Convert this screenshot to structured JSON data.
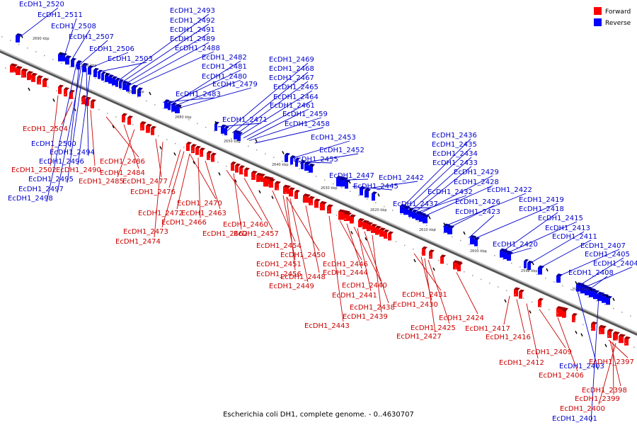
{
  "caption": "Escherichia coli DH1, complete genome. - 0..4630707",
  "legend": [
    {
      "label": "Forward",
      "color": "#ff0000"
    },
    {
      "label": "Reverse",
      "color": "#0000ff"
    }
  ],
  "colors": {
    "forward": "#ff0000",
    "reverse": "#0000ff",
    "forward_text": "#cc0000",
    "reverse_text": "#0000cc",
    "axis": "#999999"
  },
  "ticks": [
    "2690 kbp",
    "2680 kbp",
    "2670 kbp",
    "2660 kbp",
    "2650 kbp",
    "2640 kbp",
    "2630 kbp",
    "2620 kbp",
    "2610 kbp",
    "2600 kbp",
    "2590 kbp",
    "2580 kbp"
  ],
  "reverse_genes": [
    "EcDH1_2520",
    "EcDH1_2511",
    "EcDH1_2508",
    "EcDH1_2507",
    "EcDH1_2506",
    "EcDH1_2503",
    "EcDH1_2493",
    "EcDH1_2492",
    "EcDH1_2491",
    "EcDH1_2489",
    "EcDH1_2488",
    "EcDH1_2482",
    "EcDH1_2481",
    "EcDH1_2480",
    "EcDH1_2479",
    "EcDH1_2483",
    "EcDH1_2469",
    "EcDH1_2468",
    "EcDH1_2467",
    "EcDH1_2465",
    "EcDH1_2464",
    "EcDH1_2461",
    "EcDH1_2471",
    "EcDH1_2459",
    "EcDH1_2458",
    "EcDH1_2453",
    "EcDH1_2452",
    "EcDH1_2455",
    "EcDH1_2447",
    "EcDH1_2442",
    "EcDH1_2445",
    "EcDH1_2436",
    "EcDH1_2435",
    "EcDH1_2434",
    "EcDH1_2433",
    "EcDH1_2429",
    "EcDH1_2428",
    "EcDH1_2432",
    "EcDH1_2422",
    "EcDH1_2437",
    "EcDH1_2426",
    "EcDH1_2419",
    "EcDH1_2418",
    "EcDH1_2423",
    "EcDH1_2415",
    "EcDH1_2413",
    "EcDH1_2411",
    "EcDH1_2420",
    "EcDH1_2407",
    "EcDH1_2405",
    "EcDH1_2404",
    "EcDH1_2408",
    "EcDH1_2500",
    "EcDH1_2494",
    "EcDH1_2496",
    "EcDH1_2495",
    "EcDH1_2497",
    "EcDH1_2498",
    "EcDH1_2403",
    "EcDH1_2401"
  ],
  "forward_genes": [
    "EcDH1_2504",
    "EcDH1_2502",
    "EcDH1_2490",
    "EcDH1_2486",
    "EcDH1_2484",
    "EcDH1_2485",
    "EcDH1_2477",
    "EcDH1_2476",
    "EcDH1_2470",
    "EcDH1_2472",
    "EcDH1_2463",
    "EcDH1_2466",
    "EcDH1_2460",
    "EcDH1_2473",
    "EcDH1_2462",
    "EcDH1_2457",
    "EcDH1_2474",
    "EcDH1_2454",
    "EcDH1_2450",
    "EcDH1_2451",
    "EcDH1_2456",
    "EcDH1_2448",
    "EcDH1_2446",
    "EcDH1_2444",
    "EcDH1_2449",
    "EcDH1_2440",
    "EcDH1_2441",
    "EcDH1_2438",
    "EcDH1_2439",
    "EcDH1_2443",
    "EcDH1_2431",
    "EcDH1_2430",
    "EcDH1_2424",
    "EcDH1_2425",
    "EcDH1_2427",
    "EcDH1_2417",
    "EcDH1_2416",
    "EcDH1_2409",
    "EcDH1_2412",
    "EcDH1_2406",
    "EcDH1_2397",
    "EcDH1_2398",
    "EcDH1_2399",
    "EcDH1_2400"
  ]
}
